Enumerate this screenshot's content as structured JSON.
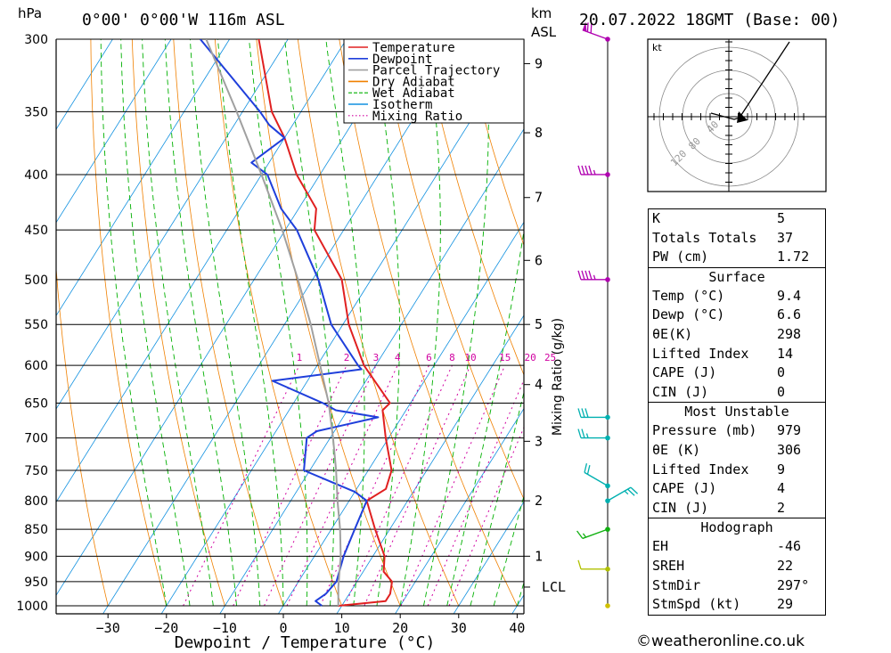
{
  "header": {
    "location": "0°00' 0°00'W 116m ASL",
    "date": "20.07.2022 18GMT (Base: 00)",
    "left_unit": "hPa",
    "right_unit_1": "km",
    "right_unit_2": "ASL"
  },
  "legend": [
    {
      "label": "Temperature",
      "color": "#e02020",
      "style": "solid"
    },
    {
      "label": "Dewpoint",
      "color": "#1f3fdb",
      "style": "solid"
    },
    {
      "label": "Parcel Trajectory",
      "color": "#a0a0a0",
      "style": "solid"
    },
    {
      "label": "Dry Adiabat",
      "color": "#f08000",
      "style": "solid"
    },
    {
      "label": "Wet Adiabat",
      "color": "#00b000",
      "style": "dashed"
    },
    {
      "label": "Isotherm",
      "color": "#1090e0",
      "style": "solid"
    },
    {
      "label": "Mixing Ratio",
      "color": "#d000a0",
      "style": "dotted"
    }
  ],
  "chart_data": {
    "type": "line",
    "xlabel": "Dewpoint / Temperature (°C)",
    "ylabel": "hPa",
    "y2label": "Mixing Ratio (g/kg)",
    "xlim": [
      -40,
      40
    ],
    "ylim": [
      1000,
      300
    ],
    "x_ticks": [
      -30,
      -20,
      -10,
      0,
      10,
      20,
      30,
      40
    ],
    "pressure_levels": [
      300,
      350,
      400,
      450,
      500,
      550,
      600,
      650,
      700,
      750,
      800,
      850,
      900,
      950,
      1000
    ],
    "km_ticks": [
      {
        "label": "9",
        "p": 316
      },
      {
        "label": "8",
        "p": 366
      },
      {
        "label": "7",
        "p": 420
      },
      {
        "label": "6",
        "p": 480
      },
      {
        "label": "5",
        "p": 550
      },
      {
        "label": "4",
        "p": 625
      },
      {
        "label": "3",
        "p": 705
      },
      {
        "label": "2",
        "p": 800
      },
      {
        "label": "1",
        "p": 900
      },
      {
        "label": "LCL",
        "p": 961
      }
    ],
    "mixing_ratio_labels": [
      "1",
      "2",
      "3",
      "4",
      "6",
      "8",
      "10",
      "15",
      "20",
      "25"
    ],
    "mixing_ratio_values": [
      1,
      2,
      3,
      4,
      6,
      8,
      10,
      15,
      20,
      25
    ],
    "series": [
      {
        "name": "Temperature",
        "points": [
          [
            1000,
            9.4
          ],
          [
            990,
            17
          ],
          [
            975,
            17
          ],
          [
            950,
            16
          ],
          [
            930,
            13.5
          ],
          [
            900,
            12
          ],
          [
            850,
            7.5
          ],
          [
            800,
            3
          ],
          [
            780,
            5
          ],
          [
            750,
            4
          ],
          [
            700,
            -0.5
          ],
          [
            660,
            -4
          ],
          [
            650,
            -3.5
          ],
          [
            600,
            -12
          ],
          [
            550,
            -19
          ],
          [
            500,
            -25
          ],
          [
            450,
            -35
          ],
          [
            430,
            -37
          ],
          [
            400,
            -44
          ],
          [
            370,
            -50
          ],
          [
            350,
            -55
          ],
          [
            300,
            -65
          ]
        ]
      },
      {
        "name": "Dewpoint",
        "points": [
          [
            1000,
            6.6
          ],
          [
            990,
            5
          ],
          [
            975,
            6
          ],
          [
            950,
            6.5
          ],
          [
            900,
            5
          ],
          [
            850,
            4
          ],
          [
            800,
            3
          ],
          [
            785,
            0
          ],
          [
            750,
            -11
          ],
          [
            700,
            -14
          ],
          [
            690,
            -13
          ],
          [
            670,
            -4
          ],
          [
            660,
            -12
          ],
          [
            650,
            -15
          ],
          [
            620,
            -26
          ],
          [
            605,
            -12
          ],
          [
            600,
            -13
          ],
          [
            550,
            -22
          ],
          [
            500,
            -29
          ],
          [
            450,
            -38
          ],
          [
            430,
            -43
          ],
          [
            400,
            -49
          ],
          [
            390,
            -53
          ],
          [
            370,
            -50
          ],
          [
            360,
            -54
          ],
          [
            350,
            -57
          ],
          [
            300,
            -75
          ]
        ]
      },
      {
        "name": "Parcel Trajectory",
        "points": [
          [
            1000,
            9.4
          ],
          [
            961,
            7.4
          ],
          [
            900,
            4.5
          ],
          [
            850,
            1.5
          ],
          [
            800,
            -2
          ],
          [
            750,
            -5.5
          ],
          [
            700,
            -9.5
          ],
          [
            650,
            -14
          ],
          [
            600,
            -19.5
          ],
          [
            550,
            -25.5
          ],
          [
            500,
            -32.5
          ],
          [
            450,
            -40.5
          ],
          [
            400,
            -50
          ],
          [
            350,
            -61
          ],
          [
            300,
            -74
          ]
        ]
      }
    ]
  },
  "hodograph": {
    "unit": "kt",
    "ring_labels": [
      "40",
      "80",
      "120"
    ],
    "storm_dir_deg": 297,
    "storm_speed_kt": 29
  },
  "wind_profile": [
    {
      "p": 300,
      "dir": 290,
      "spd": 70,
      "color": "#b000b0"
    },
    {
      "p": 400,
      "dir": 270,
      "spd": 45,
      "color": "#b000b0"
    },
    {
      "p": 500,
      "dir": 270,
      "spd": 45,
      "color": "#b000b0"
    },
    {
      "p": 670,
      "dir": 270,
      "spd": 30,
      "color": "#00b0b0"
    },
    {
      "p": 700,
      "dir": 270,
      "spd": 25,
      "color": "#00b0b0"
    },
    {
      "p": 775,
      "dir": 300,
      "spd": 20,
      "color": "#00b0b0"
    },
    {
      "p": 800,
      "dir": 60,
      "spd": 25,
      "color": "#00b0b0"
    },
    {
      "p": 850,
      "dir": 250,
      "spd": 15,
      "color": "#10b010"
    },
    {
      "p": 925,
      "dir": 270,
      "spd": 10,
      "color": "#b0c000"
    },
    {
      "p": 1000,
      "dir": 0,
      "spd": 0,
      "color": "#d0c000"
    }
  ],
  "indices": [
    {
      "header": "",
      "rows": [
        {
          "label": "K",
          "value": "5"
        },
        {
          "label": "Totals Totals",
          "value": "37"
        },
        {
          "label": "PW (cm)",
          "value": "1.72"
        }
      ]
    },
    {
      "header": "Surface",
      "rows": [
        {
          "label": "Temp (°C)",
          "value": "9.4"
        },
        {
          "label": "Dewp (°C)",
          "value": "6.6"
        },
        {
          "label": "θE(K)",
          "value": "298"
        },
        {
          "label": "Lifted Index",
          "value": "14"
        },
        {
          "label": "CAPE (J)",
          "value": "0"
        },
        {
          "label": "CIN (J)",
          "value": "0"
        }
      ]
    },
    {
      "header": "Most Unstable",
      "rows": [
        {
          "label": "Pressure (mb)",
          "value": "979"
        },
        {
          "label": "θE (K)",
          "value": "306"
        },
        {
          "label": "Lifted Index",
          "value": "9"
        },
        {
          "label": "CAPE (J)",
          "value": "4"
        },
        {
          "label": "CIN (J)",
          "value": "2"
        }
      ]
    },
    {
      "header": "Hodograph",
      "rows": [
        {
          "label": "EH",
          "value": "-46"
        },
        {
          "label": "SREH",
          "value": "22"
        },
        {
          "label": "StmDir",
          "value": "297°"
        },
        {
          "label": "StmSpd (kt)",
          "value": "29"
        }
      ]
    }
  ],
  "footer": "©weatheronline.co.uk"
}
